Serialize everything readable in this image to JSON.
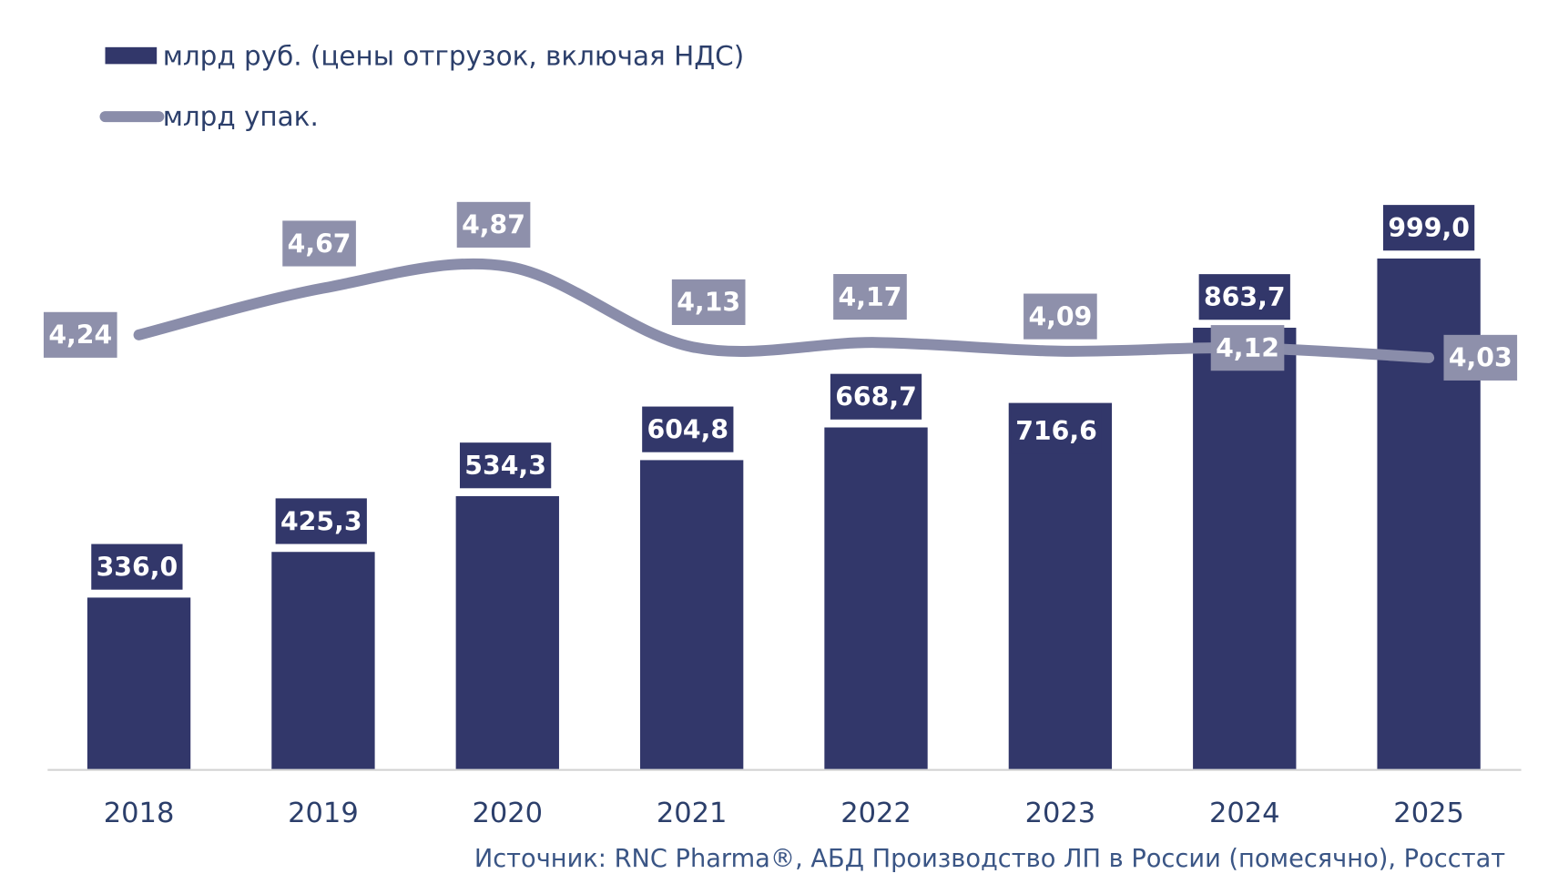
{
  "chart_data": {
    "type": "bar+line",
    "categories": [
      "2018",
      "2019",
      "2020",
      "2021",
      "2022",
      "2023",
      "2024",
      "2025"
    ],
    "series": [
      {
        "name": "млрд руб. (цены отгрузок, включая НДС)",
        "type": "bar",
        "values": [
          336.0,
          425.3,
          534.3,
          604.8,
          668.7,
          716.6,
          863.7,
          999.0
        ],
        "labels": [
          "336,0",
          "425,3",
          "534,3",
          "604,8",
          "668,7",
          "716,6",
          "863,7",
          "999,0"
        ],
        "color": "#32376A"
      },
      {
        "name": "млрд упак.",
        "type": "line",
        "values": [
          4.24,
          4.67,
          4.87,
          4.13,
          4.17,
          4.09,
          4.12,
          4.03
        ],
        "labels": [
          "4,24",
          "4,67",
          "4,87",
          "4,13",
          "4,17",
          "4,09",
          "4,12",
          "4,03"
        ],
        "color": "#8A8DAA"
      }
    ],
    "grid": false,
    "legend": "top-left",
    "source": "Источник: RNC Pharma®, АБД Производство ЛП в России (помесячно), Росстат"
  }
}
